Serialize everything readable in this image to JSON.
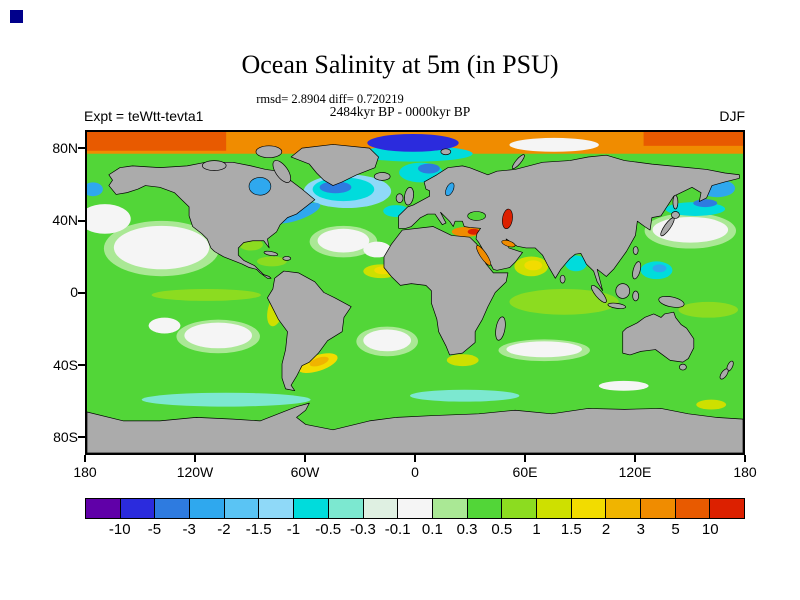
{
  "corner_mark_color": "#00008B",
  "header": {
    "title": "Ocean Salinity at 5m (in PSU)",
    "stats_line": "rmsd= 2.8904 diff= 0.720219",
    "period_line": "2484kyr BP - 0000kyr BP",
    "experiment_label": "Expt = teWtt-tevta1",
    "season": "DJF"
  },
  "map": {
    "lat_tick_labels": [
      "80N",
      "40N",
      "0",
      "40S",
      "80S"
    ],
    "lon_tick_labels": [
      "180",
      "120W",
      "60W",
      "0",
      "60E",
      "120E",
      "180"
    ],
    "land_color": "#ABABAB",
    "ocean_base_color": "#52D638"
  },
  "colorbar": {
    "tick_labels": [
      "-10",
      "-5",
      "-3",
      "-2",
      "-1.5",
      "-1",
      "-0.5",
      "-0.3",
      "-0.1",
      "0.1",
      "0.3",
      "0.5",
      "1",
      "1.5",
      "2",
      "3",
      "5",
      "10"
    ],
    "cell_colors": [
      "#6000A8",
      "#2B2BDD",
      "#2E7BE0",
      "#2FA8EE",
      "#5AC4F4",
      "#8FD9F8",
      "#00DCDC",
      "#7CE8D0",
      "#DFF0E2",
      "#F5F5F5",
      "#AAE895",
      "#52D638",
      "#8CDC20",
      "#CEE000",
      "#F2DC00",
      "#F0B400",
      "#F08C00",
      "#E85A00",
      "#DC2000"
    ]
  },
  "chart_data": {
    "type": "heatmap",
    "title": "Ocean Salinity at 5m (in PSU)",
    "variable": "ocean salinity anomaly at 5 m depth",
    "units": "PSU",
    "comparison": "2484kyr BP - 0000kyr BP",
    "experiment": "teWtt-tevta1",
    "season": "DJF",
    "stats": {
      "rmsd": 2.8904,
      "diff": 0.720219
    },
    "projection": "equirectangular",
    "lon_range": [
      -180,
      180
    ],
    "lat_range": [
      -90,
      90
    ],
    "x_tick_labels": [
      "180",
      "120W",
      "60W",
      "0",
      "60E",
      "120E",
      "180"
    ],
    "y_tick_labels": [
      "80N",
      "40N",
      "0",
      "40S",
      "80S"
    ],
    "colorbar": {
      "orientation": "horizontal",
      "levels": [
        -10,
        -5,
        -3,
        -2,
        -1.5,
        -1,
        -0.5,
        -0.3,
        -0.1,
        0.1,
        0.3,
        0.5,
        1,
        1.5,
        2,
        3,
        5,
        10
      ],
      "colors": [
        "#6000A8",
        "#2B2BDD",
        "#2E7BE0",
        "#2FA8EE",
        "#5AC4F4",
        "#8FD9F8",
        "#00DCDC",
        "#7CE8D0",
        "#DFF0E2",
        "#F5F5F5",
        "#AAE895",
        "#52D638",
        "#8CDC20",
        "#CEE000",
        "#F2DC00",
        "#F0B400",
        "#F08C00",
        "#E85A00",
        "#DC2000"
      ]
    },
    "notable_features": [
      "Arctic Ocean band: +3 to +10 PSU (orange/red)",
      "Caspian Sea: greater than +10 PSU (red)",
      "Eastern Mediterranean, Red Sea, Persian Gulf: +3 to +5 PSU (orange)",
      "Subpolar North Atlantic and Nordic Seas: -1 to -0.3 PSU (cyan/blue)",
      "Subtropical gyre centers (N/S Pacific, N/S Atlantic, S Indian): -0.1 to +0.1 PSU (white)",
      "Most open ocean: +0.3 to +1 PSU (green)",
      "Arabian Sea, Peru coast, SW Atlantic: +1 to +2 PSU (yellow)"
    ]
  }
}
